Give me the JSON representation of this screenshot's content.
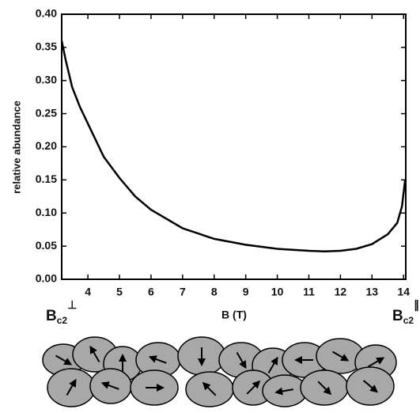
{
  "chart_data": {
    "type": "line",
    "x_label": "B (T)",
    "y_label": "relative abundance",
    "color": "#000000",
    "x": [
      3.17,
      3.3,
      3.5,
      3.75,
      4,
      4.5,
      5,
      5.5,
      6,
      7,
      8,
      9,
      10,
      11,
      11.5,
      12,
      12.5,
      13,
      13.5,
      13.8,
      13.95,
      14.05
    ],
    "values": [
      0.36,
      0.33,
      0.29,
      0.26,
      0.235,
      0.185,
      0.153,
      0.125,
      0.105,
      0.077,
      0.061,
      0.052,
      0.046,
      0.043,
      0.042,
      0.043,
      0.046,
      0.053,
      0.068,
      0.085,
      0.11,
      0.15
    ],
    "xlim": [
      3.17,
      14.07
    ],
    "ylim": [
      0,
      0.4
    ],
    "xticks": [
      4,
      5,
      6,
      7,
      8,
      9,
      10,
      11,
      12,
      13,
      14
    ],
    "yticks": [
      {
        "value": 0,
        "label": "0.00"
      },
      {
        "value": 0.05,
        "label": "0.05"
      },
      {
        "value": 0.1,
        "label": "0.10"
      },
      {
        "value": 0.15,
        "label": "0.15"
      },
      {
        "value": 0.2,
        "label": "0.20"
      },
      {
        "value": 0.25,
        "label": "0.25"
      },
      {
        "value": 0.3,
        "label": "0.30"
      },
      {
        "value": 0.35,
        "label": "0.35"
      },
      {
        "value": 0.4,
        "label": "0.40"
      }
    ],
    "annotations": [
      {
        "text": "B",
        "sub": "c2",
        "sup": "⊥"
      },
      {
        "text": "B",
        "sub": "c2",
        "sup": "∥"
      }
    ]
  }
}
